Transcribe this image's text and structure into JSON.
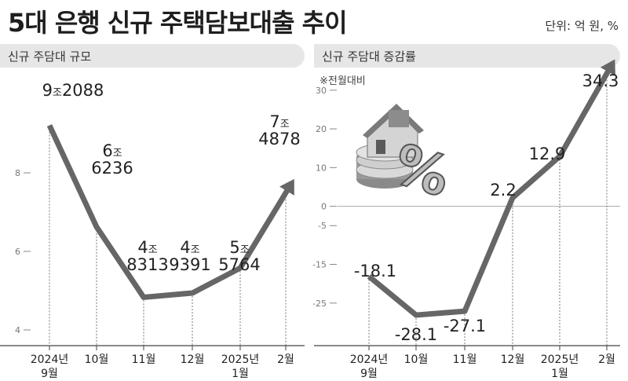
{
  "title": "5대 은행 신규 주택담보대출 추이",
  "unit_label": "단위: 억 원, %",
  "chart_data": [
    {
      "type": "line",
      "title": "신규 주담대 규모",
      "categories": [
        "2024년 9월",
        "10월",
        "11월",
        "12월",
        "2025년 1월",
        "2월"
      ],
      "values": [
        92088,
        66236,
        48313,
        49391,
        55764,
        74878
      ],
      "data_labels": [
        {
          "big": "9",
          "small": "조",
          "rest": "2088"
        },
        {
          "big": "6",
          "small": "조",
          "rest": "6236"
        },
        {
          "big": "4",
          "small": "조",
          "rest": "8313"
        },
        {
          "big": "4",
          "small": "조",
          "rest": "9391"
        },
        {
          "big": "5",
          "small": "조",
          "rest": "5764"
        },
        {
          "big": "7",
          "small": "조",
          "rest": "4878"
        }
      ],
      "y_ticks": [
        4,
        6,
        8
      ],
      "ylim": [
        36000,
        104000
      ],
      "grid": false,
      "line_color": "#666666"
    },
    {
      "type": "line",
      "title": "신규 주담대 증감률",
      "note": "※전월대비",
      "categories": [
        "2024년 9월",
        "10월",
        "11월",
        "12월",
        "2025년 1월",
        "2월"
      ],
      "values": [
        -18.1,
        -28.1,
        -27.1,
        2.2,
        12.9,
        34.3
      ],
      "data_labels": [
        "-18.1",
        "-28.1",
        "-27.1",
        "2.2",
        "12.9",
        "34.3"
      ],
      "y_ticks": [
        30,
        20,
        10,
        0,
        -5,
        -15,
        -25
      ],
      "ylim": [
        -36,
        33
      ],
      "grid": false,
      "line_color": "#666666"
    }
  ],
  "x_labels": [
    [
      "2024년",
      "9월"
    ],
    [
      "10월"
    ],
    [
      "11월"
    ],
    [
      "12월"
    ],
    [
      "2025년",
      "1월"
    ],
    [
      "2월"
    ]
  ],
  "icon": "house-percent-icon"
}
